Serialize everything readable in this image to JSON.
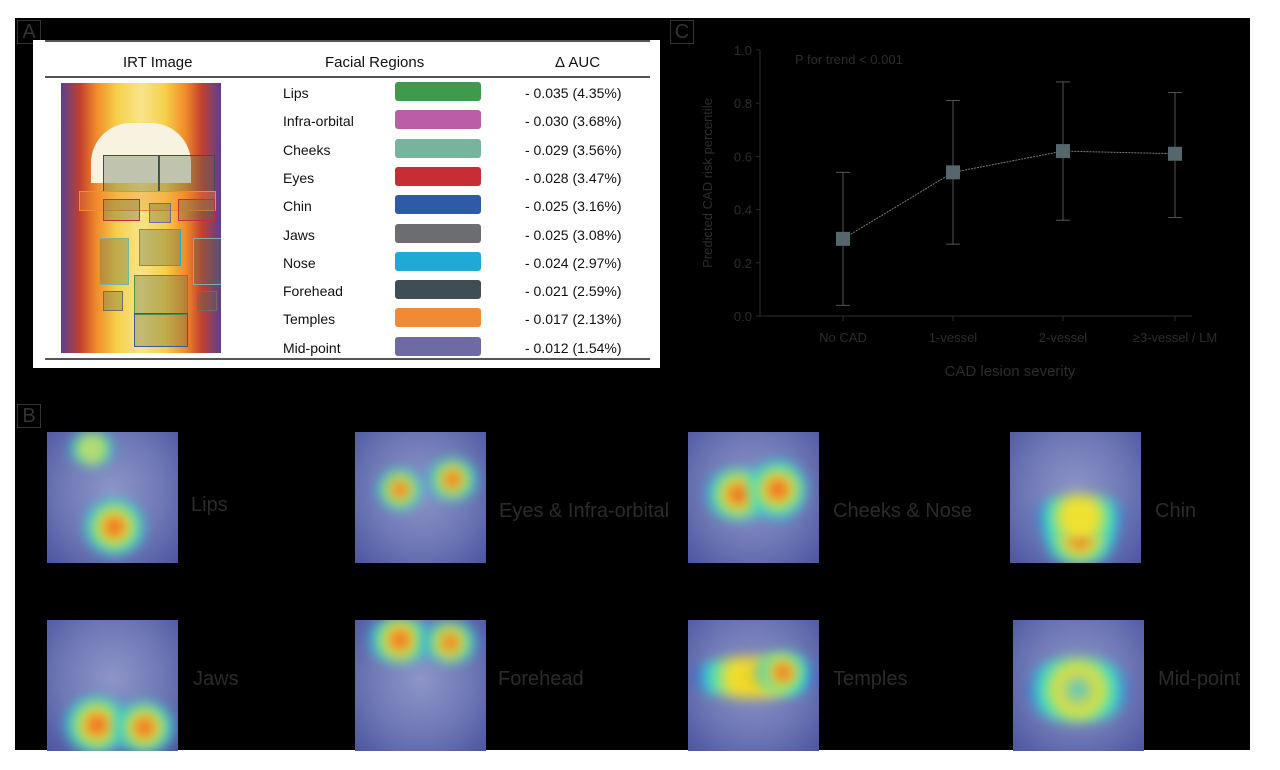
{
  "panels": {
    "a": "A",
    "b": "B",
    "c": "C"
  },
  "table": {
    "headers": [
      "IRT Image",
      "Facial Regions",
      "Δ AUC"
    ],
    "rows": [
      {
        "region": "Lips",
        "color": "#3f9a4b",
        "value": "- 0.035 (4.35%)"
      },
      {
        "region": "Infra-orbital",
        "color": "#bb5ea8",
        "value": "- 0.030 (3.68%)"
      },
      {
        "region": "Cheeks",
        "color": "#78b39e",
        "value": "- 0.029 (3.56%)"
      },
      {
        "region": "Eyes",
        "color": "#c72d35",
        "value": "- 0.028 (3.47%)"
      },
      {
        "region": "Chin",
        "color": "#2f5aa8",
        "value": "- 0.025 (3.16%)"
      },
      {
        "region": "Jaws",
        "color": "#6b6d70",
        "value": "- 0.025 (3.08%)"
      },
      {
        "region": "Nose",
        "color": "#1eaad6",
        "value": "- 0.024 (2.97%)"
      },
      {
        "region": "Forehead",
        "color": "#3f4d55",
        "value": "- 0.021 (2.59%)"
      },
      {
        "region": "Temples",
        "color": "#f28a33",
        "value": "- 0.017 (2.13%)"
      },
      {
        "region": "Mid-point",
        "color": "#6e6aa3",
        "value": "- 0.012 (1.54%)"
      }
    ]
  },
  "heatmaps": [
    "Lips",
    "Eyes & Infra-orbital",
    "Cheeks & Nose",
    "Chin",
    "Jaws",
    "Forehead",
    "Temples",
    "Mid-point"
  ],
  "chart_data": {
    "type": "line",
    "annotation": "P for trend < 0.001",
    "xlabel": "CAD lesion severity",
    "ylabel": "Predicted CAD risk percentile",
    "categories": [
      "No CAD",
      "1-vessel",
      "2-vessel",
      "≥3-vessel / LM"
    ],
    "values": [
      0.29,
      0.54,
      0.62,
      0.61
    ],
    "error_low": [
      0.04,
      0.27,
      0.36,
      0.37
    ],
    "error_high": [
      0.54,
      0.81,
      0.88,
      0.84
    ],
    "ylim": [
      0,
      1.0
    ],
    "yticks": [
      "0.0",
      "0.2",
      "0.4",
      "0.6",
      "0.8",
      "1.0"
    ],
    "grid": false,
    "marker_color": "#56666d"
  }
}
